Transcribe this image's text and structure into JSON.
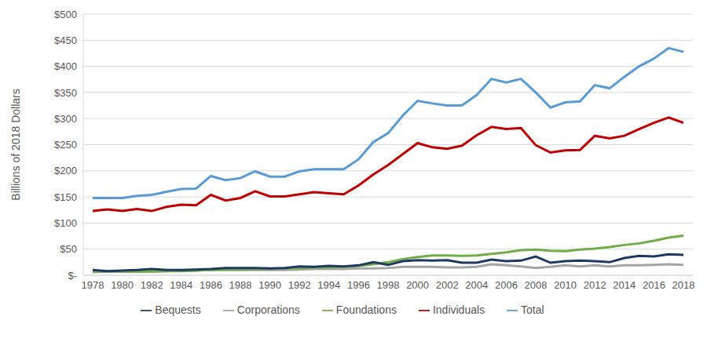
{
  "chart_data": {
    "type": "line",
    "y_label": "Billions of 2018 Dollars",
    "x": [
      1978,
      1979,
      1980,
      1981,
      1982,
      1983,
      1984,
      1985,
      1986,
      1987,
      1988,
      1989,
      1990,
      1991,
      1992,
      1993,
      1994,
      1995,
      1996,
      1997,
      1998,
      1999,
      2000,
      2001,
      2002,
      2003,
      2004,
      2005,
      2006,
      2007,
      2008,
      2009,
      2010,
      2011,
      2012,
      2013,
      2014,
      2015,
      2016,
      2017,
      2018
    ],
    "xlim": [
      1978,
      2018
    ],
    "xticks": [
      1978,
      1980,
      1982,
      1984,
      1986,
      1988,
      1990,
      1992,
      1994,
      1996,
      1998,
      2000,
      2002,
      2004,
      2006,
      2008,
      2010,
      2012,
      2014,
      2016,
      2018
    ],
    "ylim": [
      0,
      500
    ],
    "yticks": [
      {
        "value": 0,
        "label": "$-"
      },
      {
        "value": 50,
        "label": "$50"
      },
      {
        "value": 100,
        "label": "$100"
      },
      {
        "value": 150,
        "label": "$150"
      },
      {
        "value": 200,
        "label": "$200"
      },
      {
        "value": 250,
        "label": "$250"
      },
      {
        "value": 300,
        "label": "$300"
      },
      {
        "value": 350,
        "label": "$350"
      },
      {
        "value": 400,
        "label": "$400"
      },
      {
        "value": 450,
        "label": "$450"
      },
      {
        "value": 500,
        "label": "$500"
      }
    ],
    "grid": true,
    "legend": "bottom",
    "series": [
      {
        "name": "Total",
        "color": "#5b9bd5",
        "values": [
          148,
          148,
          148,
          152,
          154,
          160,
          165,
          166,
          190,
          182,
          186,
          199,
          189,
          189,
          199,
          203,
          203,
          203,
          222,
          255,
          272,
          306,
          334,
          329,
          325,
          325,
          345,
          376,
          369,
          376,
          350,
          321,
          331,
          333,
          364,
          358,
          380,
          400,
          415,
          435,
          428
        ]
      },
      {
        "name": "Individuals",
        "color": "#c00000",
        "values": [
          123,
          126,
          123,
          127,
          123,
          131,
          135,
          134,
          154,
          143,
          148,
          161,
          151,
          151,
          155,
          159,
          157,
          155,
          172,
          193,
          211,
          232,
          253,
          245,
          242,
          248,
          268,
          284,
          280,
          282,
          249,
          235,
          239,
          240,
          267,
          262,
          267,
          280,
          292,
          302,
          292
        ]
      },
      {
        "name": "Corporations",
        "color": "#a5a5a5",
        "values": [
          6,
          7,
          7,
          7,
          7,
          8,
          9,
          9,
          10,
          10,
          10,
          10,
          10,
          10,
          11,
          12,
          12,
          12,
          13,
          13,
          14,
          16,
          16,
          16,
          15,
          15,
          16,
          21,
          19,
          17,
          14,
          16,
          19,
          17,
          19,
          17,
          19,
          19,
          20,
          21,
          20
        ]
      },
      {
        "name": "Foundations",
        "color": "#70ad47",
        "values": [
          7,
          7,
          7,
          7,
          7,
          8,
          8,
          9,
          10,
          11,
          11,
          12,
          12,
          13,
          14,
          15,
          15,
          16,
          18,
          21,
          25,
          31,
          35,
          38,
          38,
          37,
          38,
          41,
          44,
          48,
          49,
          47,
          46,
          49,
          51,
          54,
          58,
          61,
          66,
          72,
          76
        ]
      },
      {
        "name": "Bequests",
        "color": "#1f3864",
        "values": [
          10,
          8,
          9,
          10,
          12,
          10,
          10,
          11,
          12,
          14,
          14,
          14,
          13,
          14,
          17,
          16,
          18,
          17,
          19,
          25,
          20,
          27,
          29,
          28,
          29,
          24,
          24,
          30,
          27,
          28,
          36,
          24,
          27,
          28,
          27,
          25,
          33,
          37,
          36,
          40,
          39
        ]
      }
    ]
  }
}
